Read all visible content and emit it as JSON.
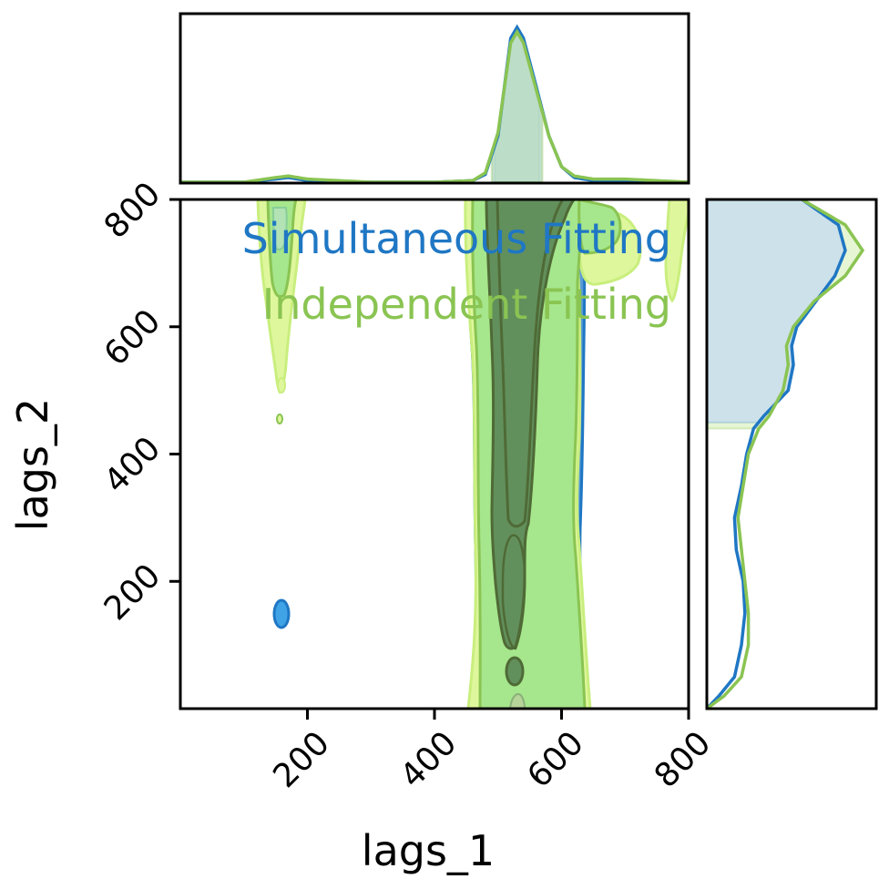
{
  "chart_data": {
    "type": "corner_plot",
    "xlabel": "lags_1",
    "ylabel": "lags_2",
    "xlim": [
      0,
      800
    ],
    "ylim": [
      0,
      800
    ],
    "xticks": [
      "200",
      "400",
      "600",
      "800"
    ],
    "yticks": [
      "200",
      "400",
      "600",
      "800"
    ],
    "legend_placement": "top-right",
    "series": [
      {
        "name": "Simultaneous Fitting",
        "color": "#1f77c4",
        "marginal_x": {
          "x": [
            0,
            100,
            150,
            170,
            200,
            300,
            400,
            460,
            480,
            500,
            520,
            530,
            540,
            560,
            580,
            600,
            620,
            650,
            700,
            800
          ],
          "density": [
            0.0,
            0.0,
            0.02,
            0.03,
            0.01,
            0.0,
            0.0,
            0.01,
            0.05,
            0.3,
            0.93,
            1.0,
            0.93,
            0.62,
            0.3,
            0.1,
            0.03,
            0.01,
            0.01,
            0.0
          ],
          "shaded_interval": [
            495,
            565
          ]
        },
        "marginal_y": {
          "y": [
            0,
            20,
            50,
            100,
            150,
            200,
            250,
            300,
            350,
            400,
            440,
            460,
            500,
            540,
            570,
            600,
            640,
            680,
            720,
            760,
            800
          ],
          "density": [
            0.0,
            0.07,
            0.16,
            0.2,
            0.22,
            0.21,
            0.17,
            0.16,
            0.2,
            0.23,
            0.27,
            0.33,
            0.47,
            0.5,
            0.49,
            0.52,
            0.63,
            0.74,
            0.8,
            0.76,
            0.55
          ],
          "shaded_interval": [
            450,
            800
          ]
        },
        "blobs": [
          {
            "x": [
              148,
              172
            ],
            "y": [
              128,
              168
            ]
          }
        ]
      },
      {
        "name": "Independent Fitting",
        "color": "#8ac452",
        "marginal_x": {
          "x": [
            0,
            100,
            150,
            170,
            200,
            300,
            400,
            460,
            480,
            500,
            520,
            530,
            540,
            560,
            580,
            600,
            620,
            650,
            700,
            800
          ],
          "density": [
            0.0,
            0.0,
            0.03,
            0.04,
            0.02,
            0.0,
            0.0,
            0.01,
            0.06,
            0.32,
            0.9,
            0.97,
            0.9,
            0.6,
            0.3,
            0.1,
            0.04,
            0.02,
            0.02,
            0.0
          ],
          "shaded_interval": [
            490,
            570
          ]
        },
        "marginal_y": {
          "y": [
            0,
            20,
            50,
            100,
            150,
            200,
            250,
            300,
            350,
            400,
            440,
            460,
            500,
            540,
            570,
            600,
            640,
            680,
            720,
            760,
            800
          ],
          "density": [
            0.0,
            0.1,
            0.2,
            0.24,
            0.24,
            0.22,
            0.2,
            0.18,
            0.21,
            0.24,
            0.3,
            0.36,
            0.44,
            0.47,
            0.46,
            0.5,
            0.62,
            0.8,
            0.9,
            0.8,
            0.55
          ],
          "shaded_interval": [
            440,
            800
          ]
        }
      }
    ]
  }
}
